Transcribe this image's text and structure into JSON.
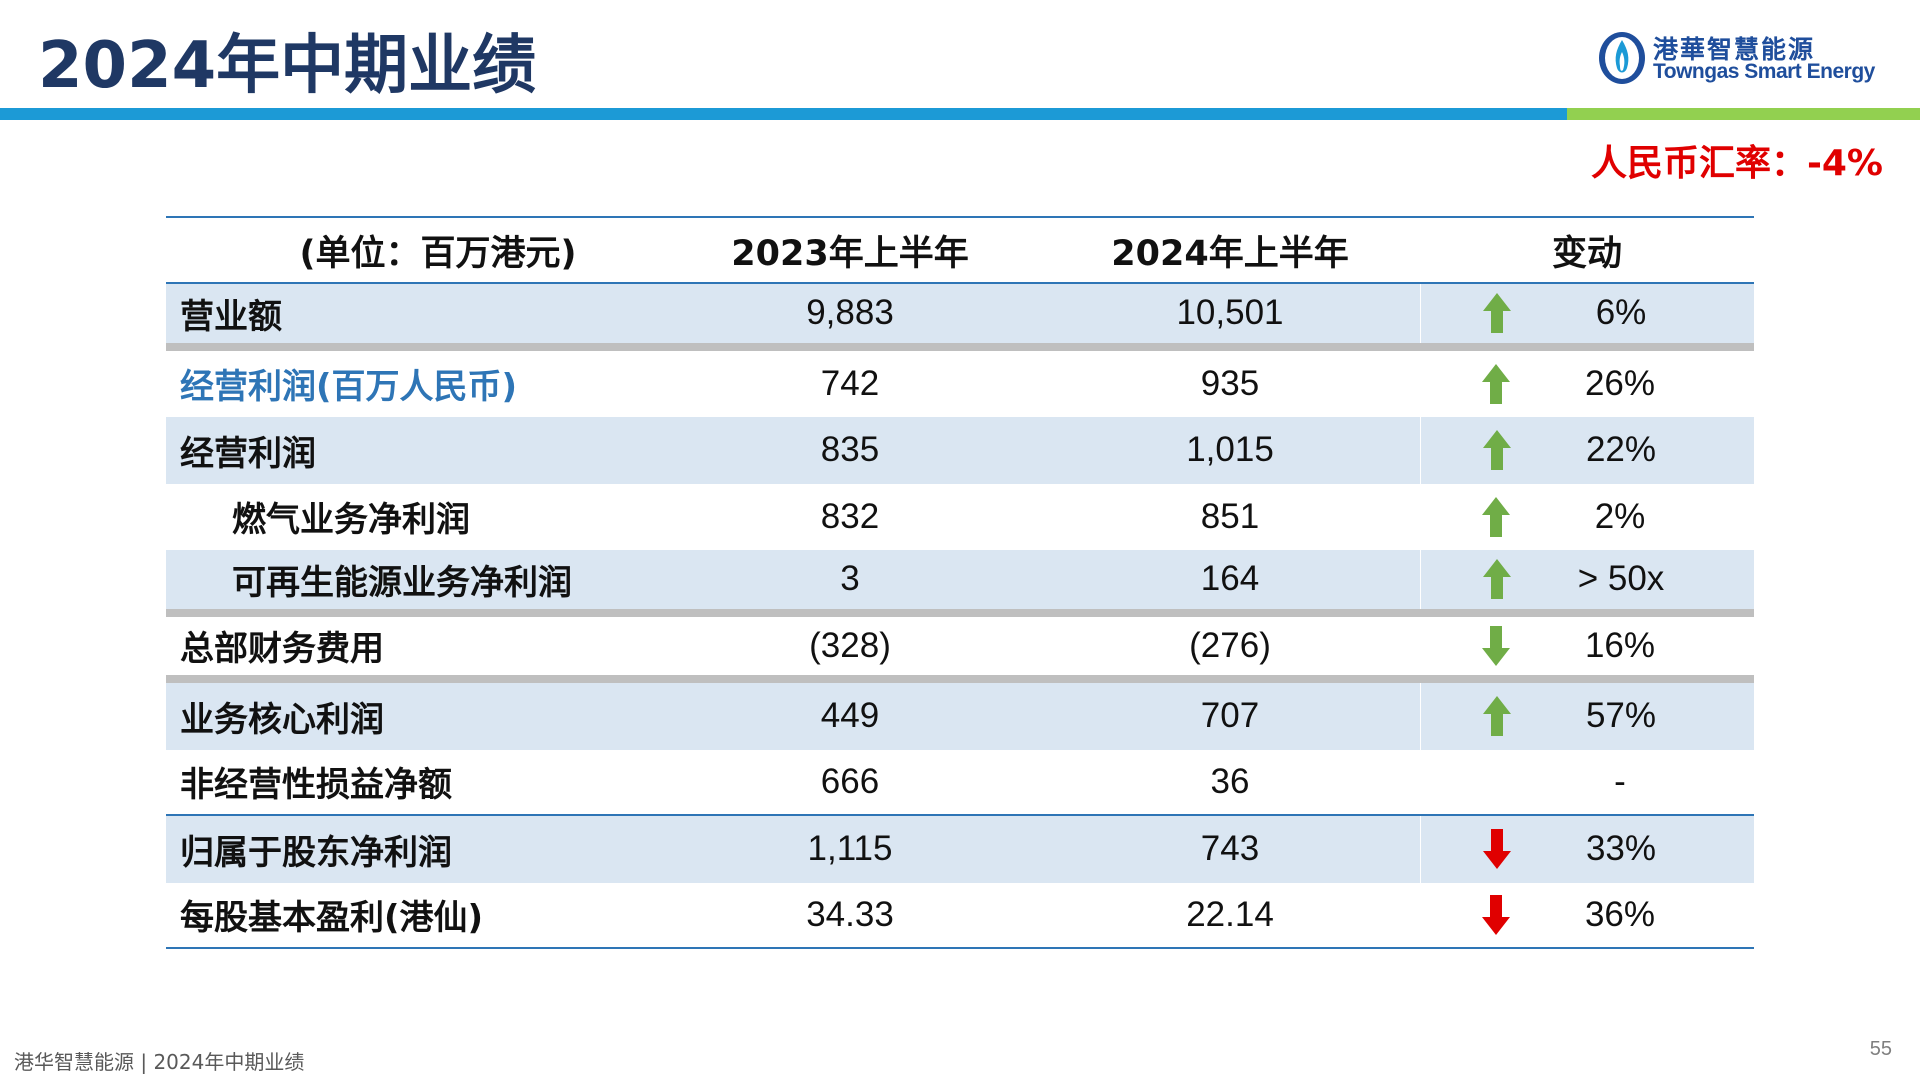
{
  "title": "2024年中期业绩",
  "logo": {
    "cn": "港華智慧能源",
    "en": "Towngas Smart Energy"
  },
  "exchange_rate_note": "人民币汇率：-4%",
  "table": {
    "headers": [
      "(单位：百万港元)",
      "2023年上半年",
      "2024年上半年",
      "变动"
    ],
    "rows": [
      {
        "label": "营业额",
        "v2023": "9,883",
        "v2024": "10,501",
        "direction": "up",
        "change": "6%"
      },
      {
        "label": "经营利润(百万人民币)",
        "v2023": "742",
        "v2024": "935",
        "direction": "up",
        "change": "26%"
      },
      {
        "label": "经营利润",
        "v2023": "835",
        "v2024": "1,015",
        "direction": "up",
        "change": "22%"
      },
      {
        "label": "燃气业务净利润",
        "v2023": "832",
        "v2024": "851",
        "direction": "up",
        "change": "2%"
      },
      {
        "label": "可再生能源业务净利润",
        "v2023": "3",
        "v2024": "164",
        "direction": "up",
        "change": "> 50x"
      },
      {
        "label": "总部财务费用",
        "v2023": "(328)",
        "v2024": "(276)",
        "direction": "down-green",
        "change": "16%"
      },
      {
        "label": "业务核心利润",
        "v2023": "449",
        "v2024": "707",
        "direction": "up",
        "change": "57%"
      },
      {
        "label": "非经营性损益净额",
        "v2023": "666",
        "v2024": "36",
        "direction": "none",
        "change": "-"
      },
      {
        "label": "归属于股东净利润",
        "v2023": "1,115",
        "v2024": "743",
        "direction": "down-red",
        "change": "33%"
      },
      {
        "label": "每股基本盈利(港仙)",
        "v2023": "34.33",
        "v2024": "22.14",
        "direction": "down-red",
        "change": "36%"
      }
    ]
  },
  "colors": {
    "up": "#70ad47",
    "down_green": "#70ad47",
    "down_red": "#e00000",
    "accent_blue": "#1c9ad6",
    "accent_green": "#92d050"
  },
  "footer": "港华智慧能源 | 2024年中期业绩",
  "page_number": "55"
}
